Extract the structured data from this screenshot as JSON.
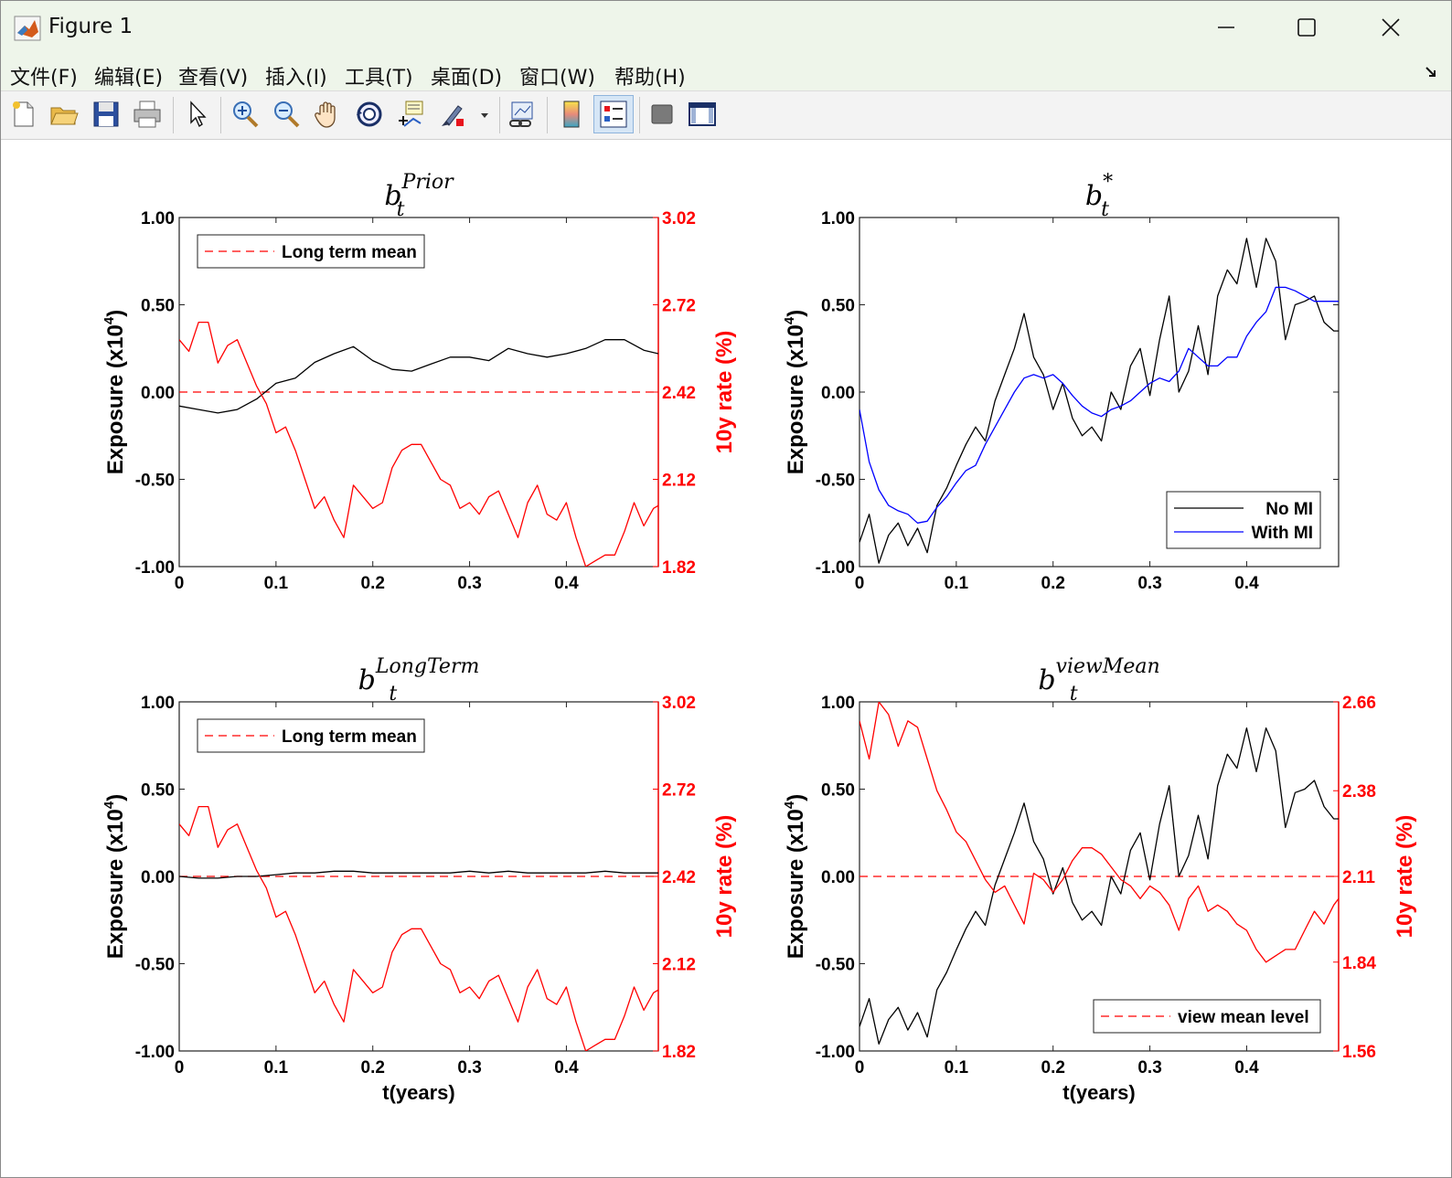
{
  "window": {
    "title": "Figure 1",
    "minimize": "minimize",
    "maximize": "maximize",
    "close": "close"
  },
  "menu": [
    "文件(F)",
    "编辑(E)",
    "查看(V)",
    "插入(I)",
    "工具(T)",
    "桌面(D)",
    "窗口(W)",
    "帮助(H)"
  ],
  "toolbar_icons": [
    "new-figure-icon",
    "open-file-icon",
    "save-icon",
    "print-icon",
    "select-arrow-icon",
    "zoom-in-icon",
    "zoom-out-icon",
    "pan-hand-icon",
    "rotate-3d-icon",
    "data-cursor-icon",
    "brush-icon",
    "link-plot-icon",
    "colorbar-icon",
    "legend-icon",
    "hide-plot-tools-icon",
    "show-plot-tools-icon"
  ],
  "colors": {
    "left_series": "#000000",
    "right_series": "#ff0000",
    "mi_series": "#0000ff",
    "right_axis": "#ff0000"
  },
  "chart_data": [
    {
      "type": "line",
      "title_base": "b",
      "title_sub": "t",
      "title_sup": "Prior",
      "xlabel": "",
      "ylabel_left": "Exposure (x10",
      "ylabel_left_sup": "4",
      "ylabel_left_end": ")",
      "ylabel_right": "10y rate (%)",
      "xlim": [
        0,
        0.495
      ],
      "ylim_left": [
        -1,
        1
      ],
      "ylim_right": [
        1.82,
        3.02
      ],
      "xticks": [
        "0",
        "0.1",
        "0.2",
        "0.3",
        "0.4"
      ],
      "yticks_left": [
        "-1.00",
        "-0.50",
        "0.00",
        "0.50",
        "1.00"
      ],
      "yticks_right": [
        "1.82",
        "2.12",
        "2.42",
        "2.72",
        "3.02"
      ],
      "legend": {
        "position": "top-left",
        "entries": [
          "Long term mean"
        ]
      },
      "reference_line": {
        "name": "Long term mean",
        "axis": "right",
        "value": 2.42
      },
      "series": [
        {
          "name": "",
          "axis": "left",
          "color": "black",
          "x": [
            0,
            0.02,
            0.04,
            0.06,
            0.08,
            0.1,
            0.12,
            0.14,
            0.16,
            0.18,
            0.2,
            0.22,
            0.24,
            0.26,
            0.28,
            0.3,
            0.32,
            0.34,
            0.36,
            0.38,
            0.4,
            0.42,
            0.44,
            0.46,
            0.48,
            0.495
          ],
          "y": [
            -0.08,
            -0.1,
            -0.12,
            -0.1,
            -0.04,
            0.05,
            0.08,
            0.17,
            0.22,
            0.26,
            0.18,
            0.13,
            0.12,
            0.16,
            0.2,
            0.2,
            0.18,
            0.25,
            0.22,
            0.2,
            0.22,
            0.25,
            0.3,
            0.3,
            0.24,
            0.22
          ]
        },
        {
          "name": "",
          "axis": "right",
          "color": "red",
          "x": [
            0,
            0.01,
            0.02,
            0.03,
            0.04,
            0.05,
            0.06,
            0.07,
            0.08,
            0.09,
            0.1,
            0.11,
            0.12,
            0.13,
            0.14,
            0.15,
            0.16,
            0.17,
            0.18,
            0.19,
            0.2,
            0.21,
            0.22,
            0.23,
            0.24,
            0.25,
            0.26,
            0.27,
            0.28,
            0.29,
            0.3,
            0.31,
            0.32,
            0.33,
            0.34,
            0.35,
            0.36,
            0.37,
            0.38,
            0.39,
            0.4,
            0.41,
            0.42,
            0.43,
            0.44,
            0.45,
            0.46,
            0.47,
            0.48,
            0.49,
            0.495
          ],
          "y": [
            2.6,
            2.56,
            2.66,
            2.66,
            2.52,
            2.58,
            2.6,
            2.52,
            2.44,
            2.38,
            2.28,
            2.3,
            2.22,
            2.12,
            2.02,
            2.06,
            1.98,
            1.92,
            2.1,
            2.06,
            2.02,
            2.04,
            2.16,
            2.22,
            2.24,
            2.24,
            2.18,
            2.12,
            2.1,
            2.02,
            2.04,
            2.0,
            2.06,
            2.08,
            2.0,
            1.92,
            2.04,
            2.1,
            2.0,
            1.98,
            2.04,
            1.92,
            1.82,
            1.84,
            1.86,
            1.86,
            1.94,
            2.04,
            1.96,
            2.02,
            2.03
          ]
        }
      ]
    },
    {
      "type": "line",
      "title_base": "b",
      "title_sub": "t",
      "title_sup": "*",
      "xlabel": "",
      "ylabel_left": "Exposure (x10",
      "ylabel_left_sup": "4",
      "ylabel_left_end": ")",
      "ylabel_right": "",
      "xlim": [
        0,
        0.495
      ],
      "ylim_left": [
        -1,
        1
      ],
      "xticks": [
        "0",
        "0.1",
        "0.2",
        "0.3",
        "0.4"
      ],
      "yticks_left": [
        "-1.00",
        "-0.50",
        "0.00",
        "0.50",
        "1.00"
      ],
      "legend": {
        "position": "bottom-right",
        "entries": [
          "No MI",
          "With MI"
        ]
      },
      "series": [
        {
          "name": "No MI",
          "axis": "left",
          "color": "black",
          "x": [
            0,
            0.01,
            0.02,
            0.03,
            0.04,
            0.05,
            0.06,
            0.07,
            0.08,
            0.09,
            0.1,
            0.11,
            0.12,
            0.13,
            0.14,
            0.15,
            0.16,
            0.17,
            0.18,
            0.19,
            0.2,
            0.21,
            0.22,
            0.23,
            0.24,
            0.25,
            0.26,
            0.27,
            0.28,
            0.29,
            0.3,
            0.31,
            0.32,
            0.33,
            0.34,
            0.35,
            0.36,
            0.37,
            0.38,
            0.39,
            0.4,
            0.41,
            0.42,
            0.43,
            0.44,
            0.45,
            0.46,
            0.47,
            0.48,
            0.49,
            0.495
          ],
          "y": [
            -0.86,
            -0.7,
            -0.98,
            -0.82,
            -0.75,
            -0.88,
            -0.78,
            -0.92,
            -0.65,
            -0.55,
            -0.42,
            -0.3,
            -0.2,
            -0.28,
            -0.05,
            0.1,
            0.25,
            0.45,
            0.2,
            0.1,
            -0.1,
            0.05,
            -0.15,
            -0.25,
            -0.2,
            -0.28,
            0.0,
            -0.1,
            0.15,
            0.25,
            -0.02,
            0.3,
            0.55,
            0.0,
            0.12,
            0.38,
            0.1,
            0.55,
            0.7,
            0.62,
            0.88,
            0.6,
            0.88,
            0.75,
            0.3,
            0.5,
            0.52,
            0.55,
            0.4,
            0.35,
            0.35
          ]
        },
        {
          "name": "With MI",
          "axis": "left",
          "color": "blue",
          "x": [
            0,
            0.01,
            0.02,
            0.03,
            0.04,
            0.05,
            0.06,
            0.07,
            0.08,
            0.09,
            0.1,
            0.11,
            0.12,
            0.13,
            0.14,
            0.15,
            0.16,
            0.17,
            0.18,
            0.19,
            0.2,
            0.21,
            0.22,
            0.23,
            0.24,
            0.25,
            0.26,
            0.27,
            0.28,
            0.29,
            0.3,
            0.31,
            0.32,
            0.33,
            0.34,
            0.35,
            0.36,
            0.37,
            0.38,
            0.39,
            0.4,
            0.41,
            0.42,
            0.43,
            0.44,
            0.45,
            0.46,
            0.47,
            0.48,
            0.49,
            0.495
          ],
          "y": [
            -0.1,
            -0.4,
            -0.56,
            -0.65,
            -0.68,
            -0.7,
            -0.75,
            -0.74,
            -0.66,
            -0.6,
            -0.52,
            -0.45,
            -0.42,
            -0.3,
            -0.2,
            -0.1,
            0.0,
            0.08,
            0.1,
            0.08,
            0.1,
            0.05,
            -0.02,
            -0.08,
            -0.12,
            -0.14,
            -0.1,
            -0.08,
            -0.05,
            0.0,
            0.05,
            0.08,
            0.06,
            0.12,
            0.25,
            0.2,
            0.15,
            0.15,
            0.2,
            0.2,
            0.32,
            0.4,
            0.46,
            0.6,
            0.6,
            0.58,
            0.55,
            0.52,
            0.52,
            0.52,
            0.52
          ]
        }
      ]
    },
    {
      "type": "line",
      "title_base": "b",
      "title_sub": "t",
      "title_sup": "LongTerm",
      "xlabel": "t(years)",
      "ylabel_left": "Exposure (x10",
      "ylabel_left_sup": "4",
      "ylabel_left_end": ")",
      "ylabel_right": "10y rate (%)",
      "xlim": [
        0,
        0.495
      ],
      "ylim_left": [
        -1,
        1
      ],
      "ylim_right": [
        1.82,
        3.02
      ],
      "xticks": [
        "0",
        "0.1",
        "0.2",
        "0.3",
        "0.4"
      ],
      "yticks_left": [
        "-1.00",
        "-0.50",
        "0.00",
        "0.50",
        "1.00"
      ],
      "yticks_right": [
        "1.82",
        "2.12",
        "2.42",
        "2.72",
        "3.02"
      ],
      "legend": {
        "position": "top-left",
        "entries": [
          "Long term mean"
        ]
      },
      "reference_line": {
        "name": "Long term mean",
        "axis": "right",
        "value": 2.42
      },
      "series": [
        {
          "name": "",
          "axis": "left",
          "color": "black",
          "x": [
            0,
            0.02,
            0.04,
            0.06,
            0.08,
            0.1,
            0.12,
            0.14,
            0.16,
            0.18,
            0.2,
            0.22,
            0.24,
            0.26,
            0.28,
            0.3,
            0.32,
            0.34,
            0.36,
            0.38,
            0.4,
            0.42,
            0.44,
            0.46,
            0.48,
            0.495
          ],
          "y": [
            0.0,
            -0.01,
            -0.01,
            0.0,
            0.0,
            0.01,
            0.02,
            0.02,
            0.03,
            0.03,
            0.02,
            0.02,
            0.02,
            0.02,
            0.02,
            0.03,
            0.02,
            0.03,
            0.02,
            0.02,
            0.02,
            0.02,
            0.03,
            0.02,
            0.02,
            0.02
          ]
        },
        {
          "name": "",
          "axis": "right",
          "color": "red",
          "x": [
            0,
            0.01,
            0.02,
            0.03,
            0.04,
            0.05,
            0.06,
            0.07,
            0.08,
            0.09,
            0.1,
            0.11,
            0.12,
            0.13,
            0.14,
            0.15,
            0.16,
            0.17,
            0.18,
            0.19,
            0.2,
            0.21,
            0.22,
            0.23,
            0.24,
            0.25,
            0.26,
            0.27,
            0.28,
            0.29,
            0.3,
            0.31,
            0.32,
            0.33,
            0.34,
            0.35,
            0.36,
            0.37,
            0.38,
            0.39,
            0.4,
            0.41,
            0.42,
            0.43,
            0.44,
            0.45,
            0.46,
            0.47,
            0.48,
            0.49,
            0.495
          ],
          "y": [
            2.6,
            2.56,
            2.66,
            2.66,
            2.52,
            2.58,
            2.6,
            2.52,
            2.44,
            2.38,
            2.28,
            2.3,
            2.22,
            2.12,
            2.02,
            2.06,
            1.98,
            1.92,
            2.1,
            2.06,
            2.02,
            2.04,
            2.16,
            2.22,
            2.24,
            2.24,
            2.18,
            2.12,
            2.1,
            2.02,
            2.04,
            2.0,
            2.06,
            2.08,
            2.0,
            1.92,
            2.04,
            2.1,
            2.0,
            1.98,
            2.04,
            1.92,
            1.82,
            1.84,
            1.86,
            1.86,
            1.94,
            2.04,
            1.96,
            2.02,
            2.03
          ]
        }
      ]
    },
    {
      "type": "line",
      "title_base": "b",
      "title_sub": "t",
      "title_sup": "viewMean",
      "xlabel": "t(years)",
      "ylabel_left": "Exposure (x10",
      "ylabel_left_sup": "4",
      "ylabel_left_end": ")",
      "ylabel_right": "10y rate (%)",
      "xlim": [
        0,
        0.495
      ],
      "ylim_left": [
        -1,
        1
      ],
      "ylim_right": [
        1.56,
        2.66
      ],
      "xticks": [
        "0",
        "0.1",
        "0.2",
        "0.3",
        "0.4"
      ],
      "yticks_left": [
        "-1.00",
        "-0.50",
        "0.00",
        "0.50",
        "1.00"
      ],
      "yticks_right": [
        "1.56",
        "1.84",
        "2.11",
        "2.38",
        "2.66"
      ],
      "legend": {
        "position": "bottom-right",
        "entries": [
          "view mean level"
        ]
      },
      "reference_line": {
        "name": "view mean level",
        "axis": "right",
        "value": 2.11
      },
      "series": [
        {
          "name": "",
          "axis": "left",
          "color": "black",
          "x": [
            0,
            0.01,
            0.02,
            0.03,
            0.04,
            0.05,
            0.06,
            0.07,
            0.08,
            0.09,
            0.1,
            0.11,
            0.12,
            0.13,
            0.14,
            0.15,
            0.16,
            0.17,
            0.18,
            0.19,
            0.2,
            0.21,
            0.22,
            0.23,
            0.24,
            0.25,
            0.26,
            0.27,
            0.28,
            0.29,
            0.3,
            0.31,
            0.32,
            0.33,
            0.34,
            0.35,
            0.36,
            0.37,
            0.38,
            0.39,
            0.4,
            0.41,
            0.42,
            0.43,
            0.44,
            0.45,
            0.46,
            0.47,
            0.48,
            0.49,
            0.495
          ],
          "y": [
            -0.86,
            -0.7,
            -0.96,
            -0.82,
            -0.75,
            -0.88,
            -0.78,
            -0.92,
            -0.65,
            -0.55,
            -0.42,
            -0.3,
            -0.2,
            -0.28,
            -0.05,
            0.1,
            0.25,
            0.42,
            0.2,
            0.1,
            -0.1,
            0.05,
            -0.15,
            -0.25,
            -0.2,
            -0.28,
            0.0,
            -0.1,
            0.15,
            0.25,
            -0.02,
            0.3,
            0.52,
            0.0,
            0.12,
            0.35,
            0.1,
            0.52,
            0.7,
            0.62,
            0.85,
            0.6,
            0.85,
            0.72,
            0.28,
            0.48,
            0.5,
            0.55,
            0.4,
            0.33,
            0.33
          ]
        },
        {
          "name": "",
          "axis": "right",
          "color": "red",
          "x": [
            0,
            0.01,
            0.02,
            0.03,
            0.04,
            0.05,
            0.06,
            0.07,
            0.08,
            0.09,
            0.1,
            0.11,
            0.12,
            0.13,
            0.14,
            0.15,
            0.16,
            0.17,
            0.18,
            0.19,
            0.2,
            0.21,
            0.22,
            0.23,
            0.24,
            0.25,
            0.26,
            0.27,
            0.28,
            0.29,
            0.3,
            0.31,
            0.32,
            0.33,
            0.34,
            0.35,
            0.36,
            0.37,
            0.38,
            0.39,
            0.4,
            0.41,
            0.42,
            0.43,
            0.44,
            0.45,
            0.46,
            0.47,
            0.48,
            0.49,
            0.495
          ],
          "y": [
            2.6,
            2.48,
            2.66,
            2.62,
            2.52,
            2.6,
            2.58,
            2.48,
            2.38,
            2.32,
            2.25,
            2.22,
            2.16,
            2.1,
            2.06,
            2.08,
            2.02,
            1.96,
            2.12,
            2.1,
            2.06,
            2.1,
            2.16,
            2.2,
            2.2,
            2.18,
            2.14,
            2.1,
            2.08,
            2.04,
            2.08,
            2.06,
            2.02,
            1.94,
            2.04,
            2.08,
            2.0,
            2.02,
            2.0,
            1.96,
            1.94,
            1.88,
            1.84,
            1.86,
            1.88,
            1.88,
            1.94,
            2.0,
            1.96,
            2.02,
            2.04
          ]
        }
      ]
    }
  ]
}
